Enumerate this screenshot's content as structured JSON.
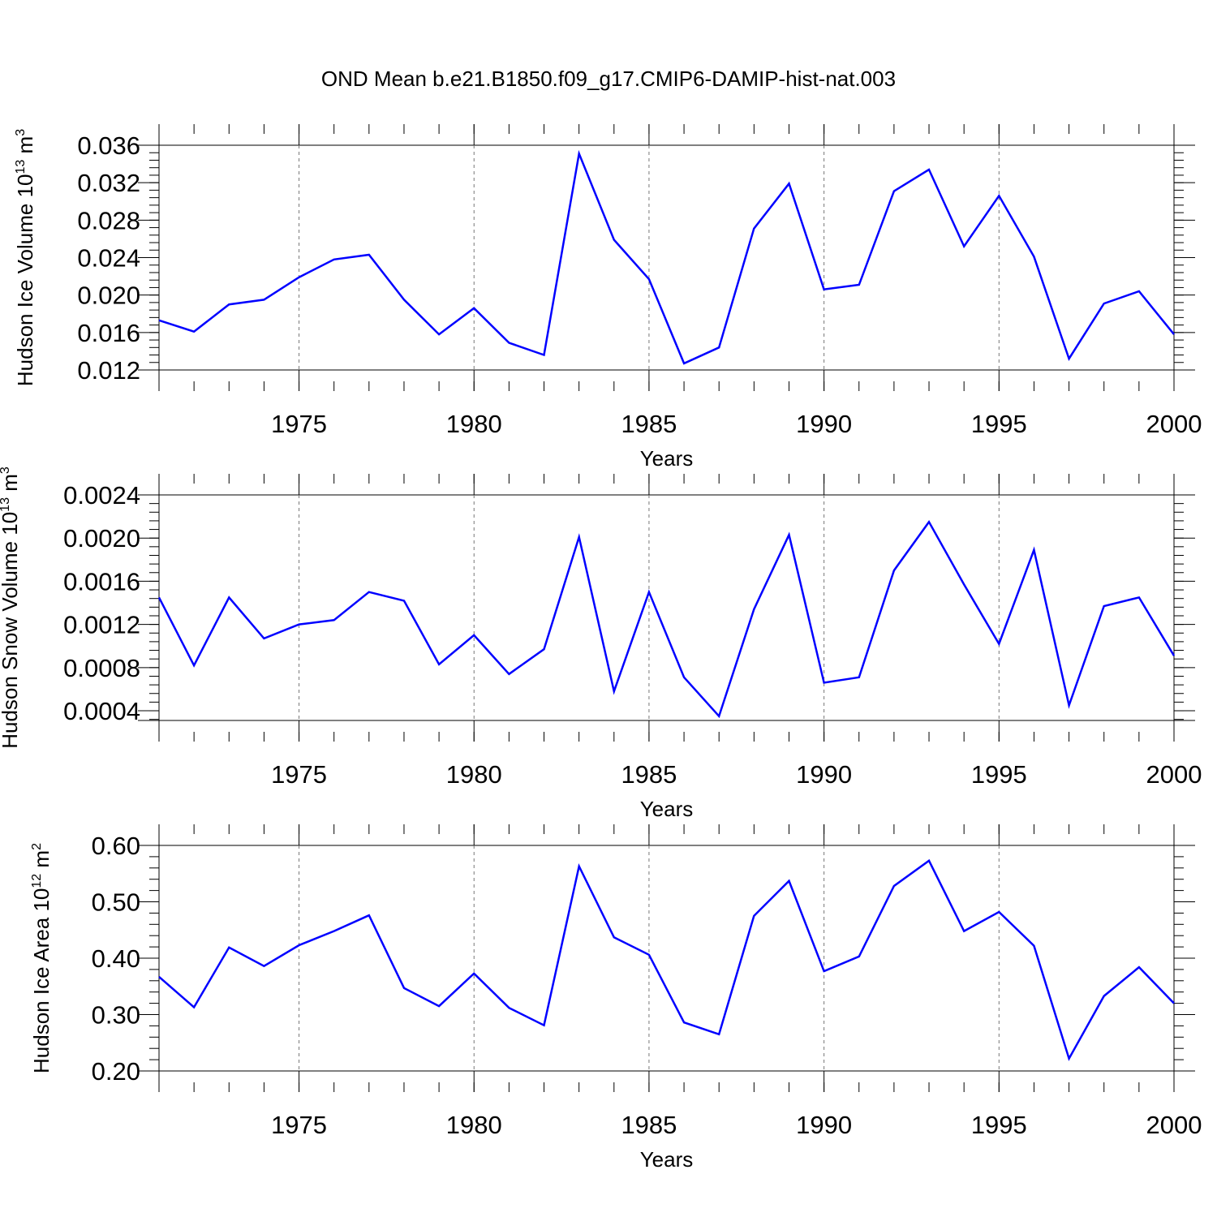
{
  "title": "OND Mean b.e21.B1850.f09_g17.CMIP6-DAMIP-hist-nat.003",
  "line_color": "#0000ff",
  "chart_data": [
    {
      "type": "line",
      "ylabel": "Hudson Ice Volume 10",
      "ylabel_exp": "13",
      "ylabel_unit": " m",
      "ylabel_unit_exp": "3",
      "xlabel": "Years",
      "xlim": [
        1971,
        2000
      ],
      "ylim": [
        0.012,
        0.036
      ],
      "yticks": [
        0.012,
        0.016,
        0.02,
        0.024,
        0.028,
        0.032,
        0.036
      ],
      "ytick_labels": [
        "0.012",
        "0.016",
        "0.020",
        "0.024",
        "0.028",
        "0.032",
        "0.036"
      ],
      "xticks": [
        1975,
        1980,
        1985,
        1990,
        1995,
        2000
      ],
      "xtick_labels": [
        "1975",
        "1980",
        "1985",
        "1990",
        "1995",
        "2000"
      ],
      "grid_x_dashed": true,
      "x": [
        1971,
        1972,
        1973,
        1974,
        1975,
        1976,
        1977,
        1978,
        1979,
        1980,
        1981,
        1982,
        1983,
        1984,
        1985,
        1986,
        1987,
        1988,
        1989,
        1990,
        1991,
        1992,
        1993,
        1994,
        1995,
        1996,
        1997,
        1998,
        1999,
        2000
      ],
      "values": [
        0.0173,
        0.0161,
        0.019,
        0.0195,
        0.0219,
        0.0238,
        0.0243,
        0.0195,
        0.0158,
        0.0186,
        0.0149,
        0.0136,
        0.0351,
        0.0259,
        0.0217,
        0.0127,
        0.0144,
        0.0271,
        0.0319,
        0.0206,
        0.0211,
        0.0311,
        0.0334,
        0.0252,
        0.0306,
        0.0241,
        0.0132,
        0.0191,
        0.0204,
        0.0158
      ]
    },
    {
      "type": "line",
      "ylabel": "Hudson Snow Volume 10",
      "ylabel_exp": "13",
      "ylabel_unit": " m",
      "ylabel_unit_exp": "3",
      "xlabel": "Years",
      "xlim": [
        1971,
        2000
      ],
      "ylim": [
        0.00031,
        0.0024
      ],
      "yticks": [
        0.0004,
        0.0008,
        0.0012,
        0.0016,
        0.002,
        0.0024
      ],
      "ytick_labels": [
        "0.0004",
        "0.0008",
        "0.0012",
        "0.0016",
        "0.0020",
        "0.0024"
      ],
      "xticks": [
        1975,
        1980,
        1985,
        1990,
        1995,
        2000
      ],
      "xtick_labels": [
        "1975",
        "1980",
        "1985",
        "1990",
        "1995",
        "2000"
      ],
      "grid_x_dashed": true,
      "x": [
        1971,
        1972,
        1973,
        1974,
        1975,
        1976,
        1977,
        1978,
        1979,
        1980,
        1981,
        1982,
        1983,
        1984,
        1985,
        1986,
        1987,
        1988,
        1989,
        1990,
        1991,
        1992,
        1993,
        1994,
        1995,
        1996,
        1997,
        1998,
        1999,
        2000
      ],
      "values": [
        0.00145,
        0.00082,
        0.00145,
        0.00107,
        0.0012,
        0.00124,
        0.0015,
        0.00142,
        0.00083,
        0.0011,
        0.00074,
        0.00097,
        0.00201,
        0.00058,
        0.0015,
        0.00071,
        0.00035,
        0.00134,
        0.00203,
        0.00066,
        0.00071,
        0.0017,
        0.00215,
        0.00157,
        0.00102,
        0.00189,
        0.00045,
        0.00137,
        0.00145,
        0.00091
      ]
    },
    {
      "type": "line",
      "ylabel": "Hudson Ice Area 10",
      "ylabel_exp": "12",
      "ylabel_unit": " m",
      "ylabel_unit_exp": "2",
      "xlabel": "Years",
      "xlim": [
        1971,
        2000
      ],
      "ylim": [
        0.2,
        0.6
      ],
      "yticks": [
        0.2,
        0.3,
        0.4,
        0.5,
        0.6
      ],
      "ytick_labels": [
        "0.20",
        "0.30",
        "0.40",
        "0.50",
        "0.60"
      ],
      "xticks": [
        1975,
        1980,
        1985,
        1990,
        1995,
        2000
      ],
      "xtick_labels": [
        "1975",
        "1980",
        "1985",
        "1990",
        "1995",
        "2000"
      ],
      "grid_x_dashed": true,
      "x": [
        1971,
        1972,
        1973,
        1974,
        1975,
        1976,
        1977,
        1978,
        1979,
        1980,
        1981,
        1982,
        1983,
        1984,
        1985,
        1986,
        1987,
        1988,
        1989,
        1990,
        1991,
        1992,
        1993,
        1994,
        1995,
        1996,
        1997,
        1998,
        1999,
        2000
      ],
      "values": [
        0.367,
        0.313,
        0.419,
        0.386,
        0.423,
        0.448,
        0.476,
        0.347,
        0.315,
        0.373,
        0.312,
        0.281,
        0.563,
        0.437,
        0.406,
        0.286,
        0.265,
        0.475,
        0.537,
        0.377,
        0.403,
        0.528,
        0.573,
        0.448,
        0.482,
        0.422,
        0.222,
        0.333,
        0.384,
        0.32
      ]
    }
  ]
}
